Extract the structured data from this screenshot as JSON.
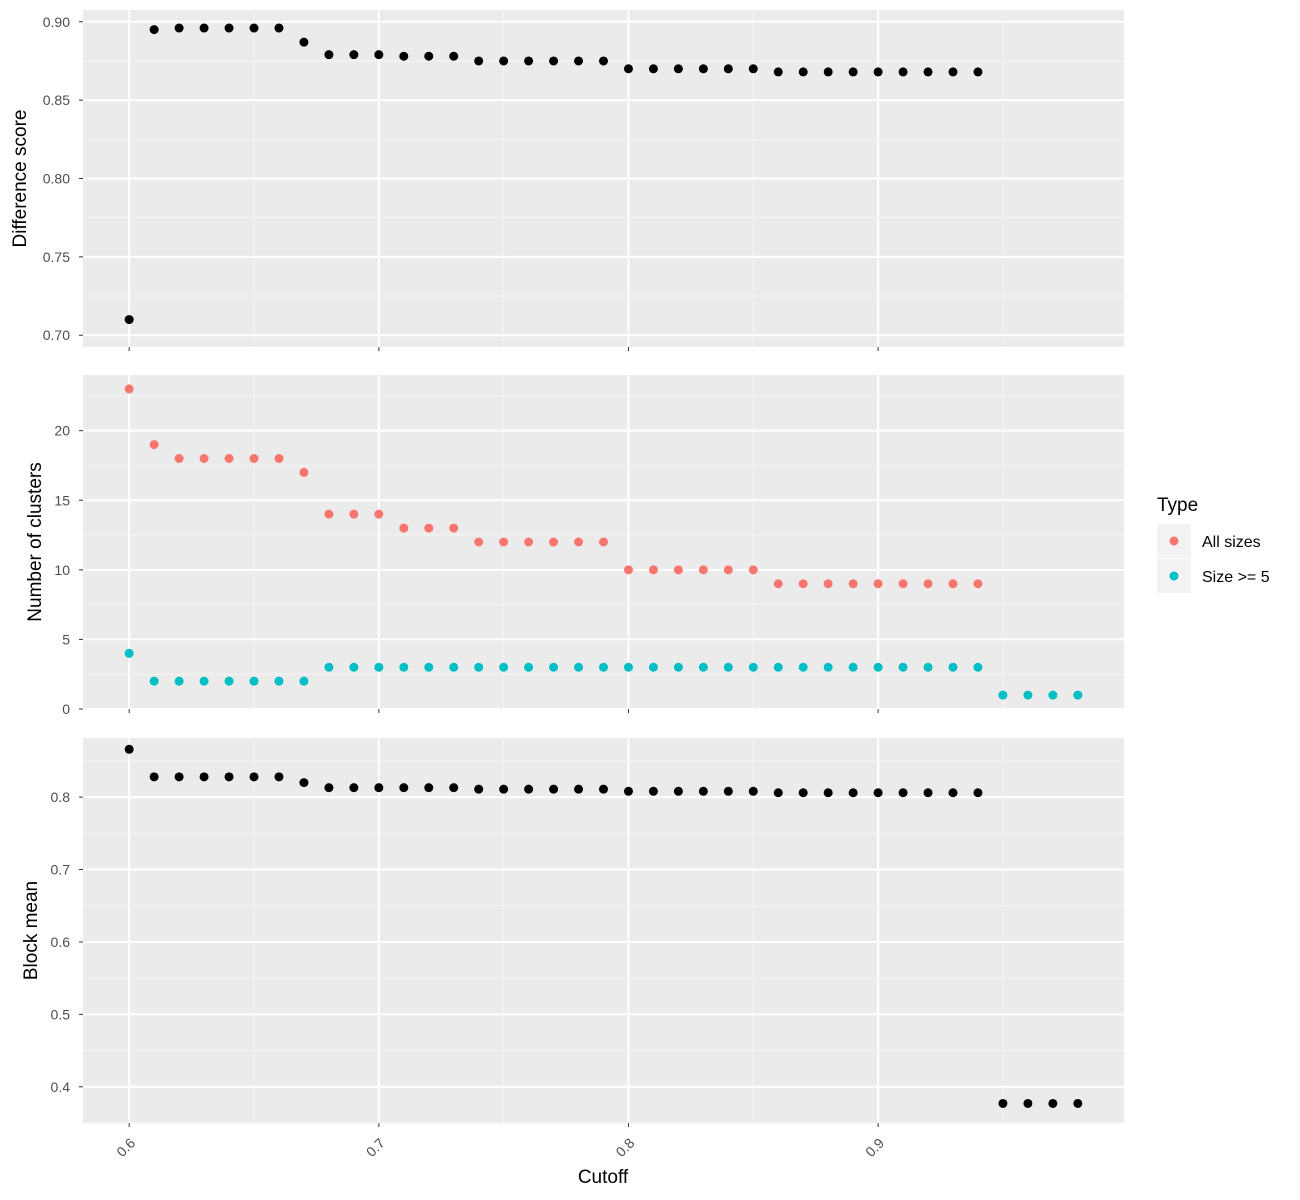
{
  "colors": {
    "panel_bg": "#EBEBEB",
    "grid_major": "#FFFFFF",
    "grid_minor": "#F5F5F5",
    "black_points": "#000000",
    "all_sizes": "#F8766D",
    "size_ge_5": "#00BFC4",
    "tick": "#333333"
  },
  "chart_data": {
    "type": "scatter",
    "xlabel": "Cutoff",
    "x_ticks": [
      0.6,
      0.7,
      0.8,
      0.9
    ],
    "x_tick_labels": [
      "0.6",
      "0.7",
      "0.8",
      "0.9"
    ],
    "xlim": [
      0.5815,
      0.9985
    ],
    "grid": true,
    "legend": {
      "title": "Type",
      "placement": "right",
      "entries": [
        {
          "label": "All sizes",
          "color": "#F8766D"
        },
        {
          "label": "Size >= 5",
          "color": "#00BFC4"
        }
      ]
    },
    "panels": [
      {
        "ylabel": "Difference score",
        "ylim": [
          0.6925,
          0.9075
        ],
        "y_ticks": [
          0.7,
          0.75,
          0.8,
          0.85,
          0.9
        ],
        "y_tick_labels": [
          "0.70",
          "0.75",
          "0.80",
          "0.85",
          "0.90"
        ],
        "series": [
          {
            "color": "#000000",
            "x": [
              0.6,
              0.61,
              0.62,
              0.63,
              0.64,
              0.65,
              0.66,
              0.67,
              0.68,
              0.69,
              0.7,
              0.71,
              0.72,
              0.73,
              0.74,
              0.75,
              0.76,
              0.77,
              0.78,
              0.79,
              0.8,
              0.81,
              0.82,
              0.83,
              0.84,
              0.85,
              0.86,
              0.87,
              0.88,
              0.89,
              0.9,
              0.91,
              0.92,
              0.93,
              0.94
            ],
            "y": [
              0.71,
              0.895,
              0.896,
              0.896,
              0.896,
              0.896,
              0.896,
              0.887,
              0.879,
              0.879,
              0.879,
              0.878,
              0.878,
              0.878,
              0.875,
              0.875,
              0.875,
              0.875,
              0.875,
              0.875,
              0.87,
              0.87,
              0.87,
              0.87,
              0.87,
              0.87,
              0.868,
              0.868,
              0.868,
              0.868,
              0.868,
              0.868,
              0.868,
              0.868,
              0.868
            ]
          }
        ]
      },
      {
        "ylabel": "Number of clusters",
        "ylim": [
          0,
          24
        ],
        "y_ticks": [
          0,
          5,
          10,
          15,
          20
        ],
        "y_tick_labels": [
          "0",
          "5",
          "10",
          "15",
          "20"
        ],
        "series": [
          {
            "name": "All sizes",
            "color": "#F8766D",
            "x": [
              0.6,
              0.61,
              0.62,
              0.63,
              0.64,
              0.65,
              0.66,
              0.67,
              0.68,
              0.69,
              0.7,
              0.71,
              0.72,
              0.73,
              0.74,
              0.75,
              0.76,
              0.77,
              0.78,
              0.79,
              0.8,
              0.81,
              0.82,
              0.83,
              0.84,
              0.85,
              0.86,
              0.87,
              0.88,
              0.89,
              0.9,
              0.91,
              0.92,
              0.93,
              0.94
            ],
            "y": [
              23,
              19,
              18,
              18,
              18,
              18,
              18,
              17,
              14,
              14,
              14,
              13,
              13,
              13,
              12,
              12,
              12,
              12,
              12,
              12,
              10,
              10,
              10,
              10,
              10,
              10,
              9,
              9,
              9,
              9,
              9,
              9,
              9,
              9,
              9
            ]
          },
          {
            "name": "Size >= 5",
            "color": "#00BFC4",
            "x": [
              0.6,
              0.61,
              0.62,
              0.63,
              0.64,
              0.65,
              0.66,
              0.67,
              0.68,
              0.69,
              0.7,
              0.71,
              0.72,
              0.73,
              0.74,
              0.75,
              0.76,
              0.77,
              0.78,
              0.79,
              0.8,
              0.81,
              0.82,
              0.83,
              0.84,
              0.85,
              0.86,
              0.87,
              0.88,
              0.89,
              0.9,
              0.91,
              0.92,
              0.93,
              0.94,
              0.95,
              0.96,
              0.97,
              0.98
            ],
            "y": [
              4,
              2,
              2,
              2,
              2,
              2,
              2,
              2,
              3,
              3,
              3,
              3,
              3,
              3,
              3,
              3,
              3,
              3,
              3,
              3,
              3,
              3,
              3,
              3,
              3,
              3,
              3,
              3,
              3,
              3,
              3,
              3,
              3,
              3,
              3,
              1,
              1,
              1,
              1
            ]
          }
        ]
      },
      {
        "ylabel": "Block mean",
        "ylim": [
          0.35,
          0.8816
        ],
        "y_ticks": [
          0.4,
          0.5,
          0.6,
          0.7,
          0.8
        ],
        "y_tick_labels": [
          "0.4",
          "0.5",
          "0.6",
          "0.7",
          "0.8"
        ],
        "series": [
          {
            "color": "#000000",
            "x": [
              0.6,
              0.61,
              0.62,
              0.63,
              0.64,
              0.65,
              0.66,
              0.67,
              0.68,
              0.69,
              0.7,
              0.71,
              0.72,
              0.73,
              0.74,
              0.75,
              0.76,
              0.77,
              0.78,
              0.79,
              0.8,
              0.81,
              0.82,
              0.83,
              0.84,
              0.85,
              0.86,
              0.87,
              0.88,
              0.89,
              0.9,
              0.91,
              0.92,
              0.93,
              0.94,
              0.95,
              0.96,
              0.97,
              0.98
            ],
            "y": [
              0.866,
              0.828,
              0.828,
              0.828,
              0.828,
              0.828,
              0.828,
              0.82,
              0.813,
              0.813,
              0.813,
              0.813,
              0.813,
              0.813,
              0.811,
              0.811,
              0.811,
              0.811,
              0.811,
              0.811,
              0.808,
              0.808,
              0.808,
              0.808,
              0.808,
              0.808,
              0.806,
              0.806,
              0.806,
              0.806,
              0.806,
              0.806,
              0.806,
              0.806,
              0.806,
              0.377,
              0.377,
              0.377,
              0.377
            ]
          }
        ]
      }
    ]
  }
}
